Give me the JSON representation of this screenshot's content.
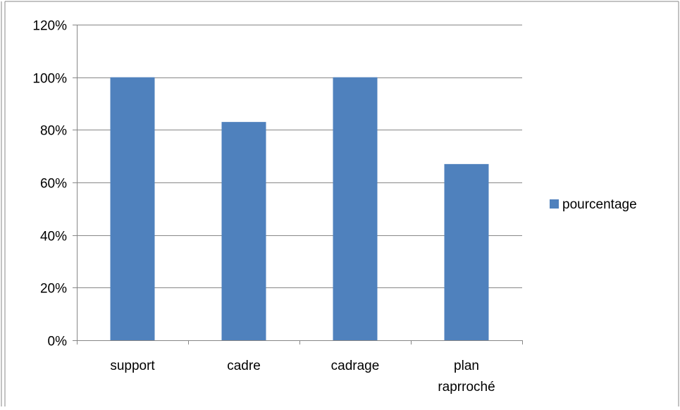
{
  "chart_data": {
    "type": "bar",
    "categories": [
      [
        "support"
      ],
      [
        "cadre"
      ],
      [
        "cadrage"
      ],
      [
        "plan",
        "raprroché"
      ]
    ],
    "series": [
      {
        "name": "pourcentage",
        "values": [
          100,
          83,
          100,
          67
        ],
        "color": "#4f81bd"
      }
    ],
    "ylim": [
      0,
      120
    ],
    "ytick_step": 20,
    "ytick_labels": [
      "0%",
      "20%",
      "40%",
      "60%",
      "80%",
      "100%",
      "120%"
    ],
    "grid": true,
    "legend_position": "right"
  },
  "colors": {
    "bar": "#4f81bd",
    "gridline": "#878787",
    "axis": "#878787",
    "frame": "#878787"
  }
}
